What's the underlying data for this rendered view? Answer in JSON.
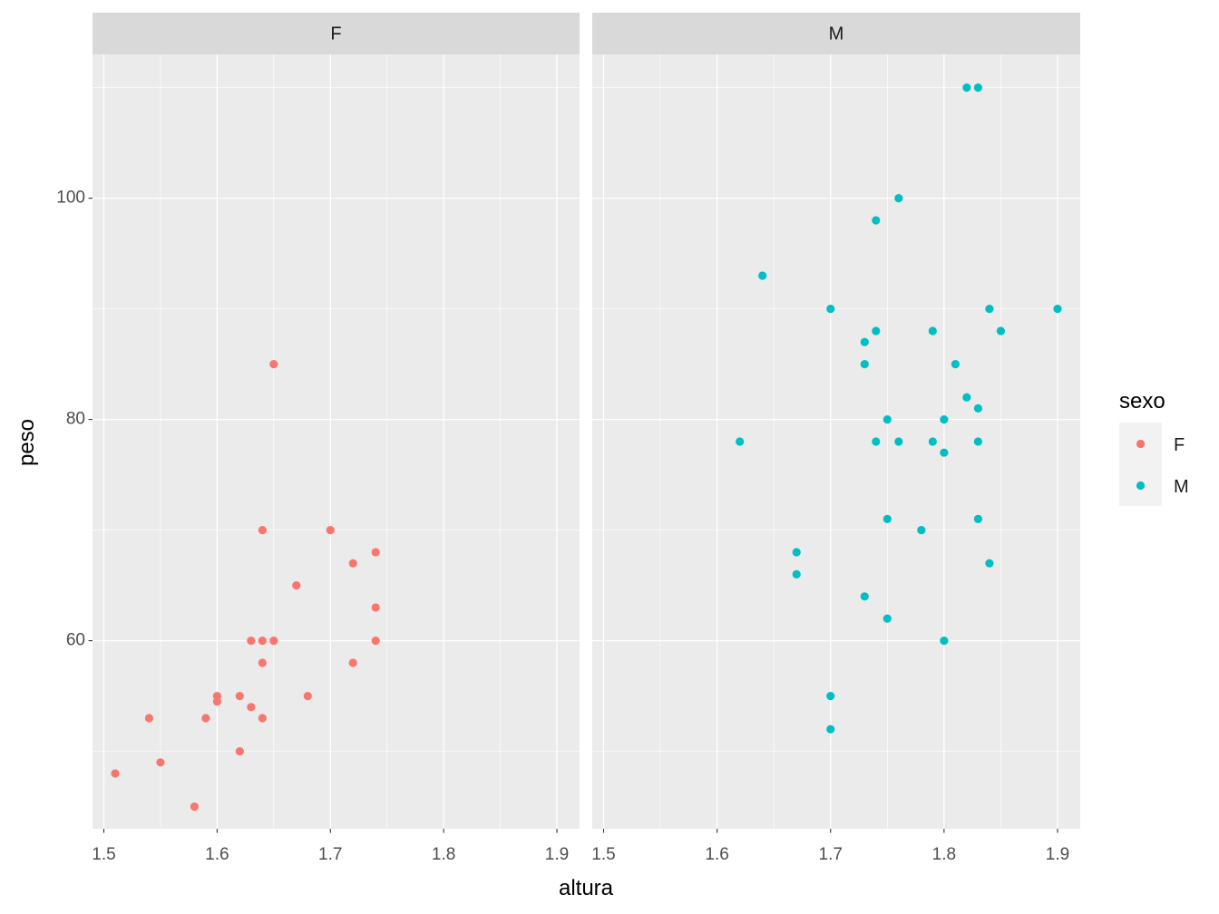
{
  "chart_data": {
    "type": "scatter",
    "facet_by": "sexo",
    "panels": [
      {
        "strip_label": "F",
        "series": "F"
      },
      {
        "strip_label": "M",
        "series": "M"
      }
    ],
    "xlabel": "altura",
    "ylabel": "peso",
    "xlim": [
      1.49,
      1.92
    ],
    "ylim": [
      43,
      113
    ],
    "x_ticks": [
      "1.5",
      "1.6",
      "1.7",
      "1.8",
      "1.9"
    ],
    "x_tick_values": [
      1.5,
      1.6,
      1.7,
      1.8,
      1.9
    ],
    "y_ticks": [
      "60",
      "80",
      "100"
    ],
    "y_tick_values": [
      60,
      80,
      100
    ],
    "grid": true,
    "legend": {
      "title": "sexo",
      "position": "right",
      "entries": [
        {
          "label": "F",
          "color": "#F8766D"
        },
        {
          "label": "M",
          "color": "#00BFC4"
        }
      ]
    },
    "series": [
      {
        "name": "F",
        "color": "#F8766D",
        "points": [
          [
            1.51,
            48
          ],
          [
            1.54,
            53
          ],
          [
            1.55,
            49
          ],
          [
            1.58,
            45
          ],
          [
            1.59,
            53
          ],
          [
            1.6,
            55
          ],
          [
            1.6,
            54.5
          ],
          [
            1.62,
            55
          ],
          [
            1.62,
            50
          ],
          [
            1.63,
            60
          ],
          [
            1.63,
            54
          ],
          [
            1.64,
            70
          ],
          [
            1.64,
            60
          ],
          [
            1.64,
            58
          ],
          [
            1.64,
            53
          ],
          [
            1.65,
            85
          ],
          [
            1.65,
            60
          ],
          [
            1.67,
            65
          ],
          [
            1.68,
            55
          ],
          [
            1.7,
            70
          ],
          [
            1.72,
            67
          ],
          [
            1.72,
            58
          ],
          [
            1.74,
            68
          ],
          [
            1.74,
            63
          ],
          [
            1.74,
            60
          ]
        ]
      },
      {
        "name": "M",
        "color": "#00BFC4",
        "points": [
          [
            1.62,
            78
          ],
          [
            1.64,
            93
          ],
          [
            1.67,
            68
          ],
          [
            1.67,
            66
          ],
          [
            1.7,
            90
          ],
          [
            1.7,
            55
          ],
          [
            1.7,
            52
          ],
          [
            1.73,
            87
          ],
          [
            1.73,
            85
          ],
          [
            1.73,
            64
          ],
          [
            1.74,
            98
          ],
          [
            1.74,
            88
          ],
          [
            1.74,
            78
          ],
          [
            1.75,
            80
          ],
          [
            1.75,
            71
          ],
          [
            1.75,
            62
          ],
          [
            1.76,
            100
          ],
          [
            1.76,
            78
          ],
          [
            1.78,
            70
          ],
          [
            1.79,
            88
          ],
          [
            1.79,
            78
          ],
          [
            1.8,
            80
          ],
          [
            1.8,
            77
          ],
          [
            1.8,
            60
          ],
          [
            1.81,
            85
          ],
          [
            1.82,
            110
          ],
          [
            1.82,
            82
          ],
          [
            1.83,
            110
          ],
          [
            1.83,
            81
          ],
          [
            1.83,
            78
          ],
          [
            1.83,
            71
          ],
          [
            1.84,
            90
          ],
          [
            1.84,
            67
          ],
          [
            1.85,
            88
          ],
          [
            1.9,
            90
          ]
        ]
      }
    ]
  }
}
